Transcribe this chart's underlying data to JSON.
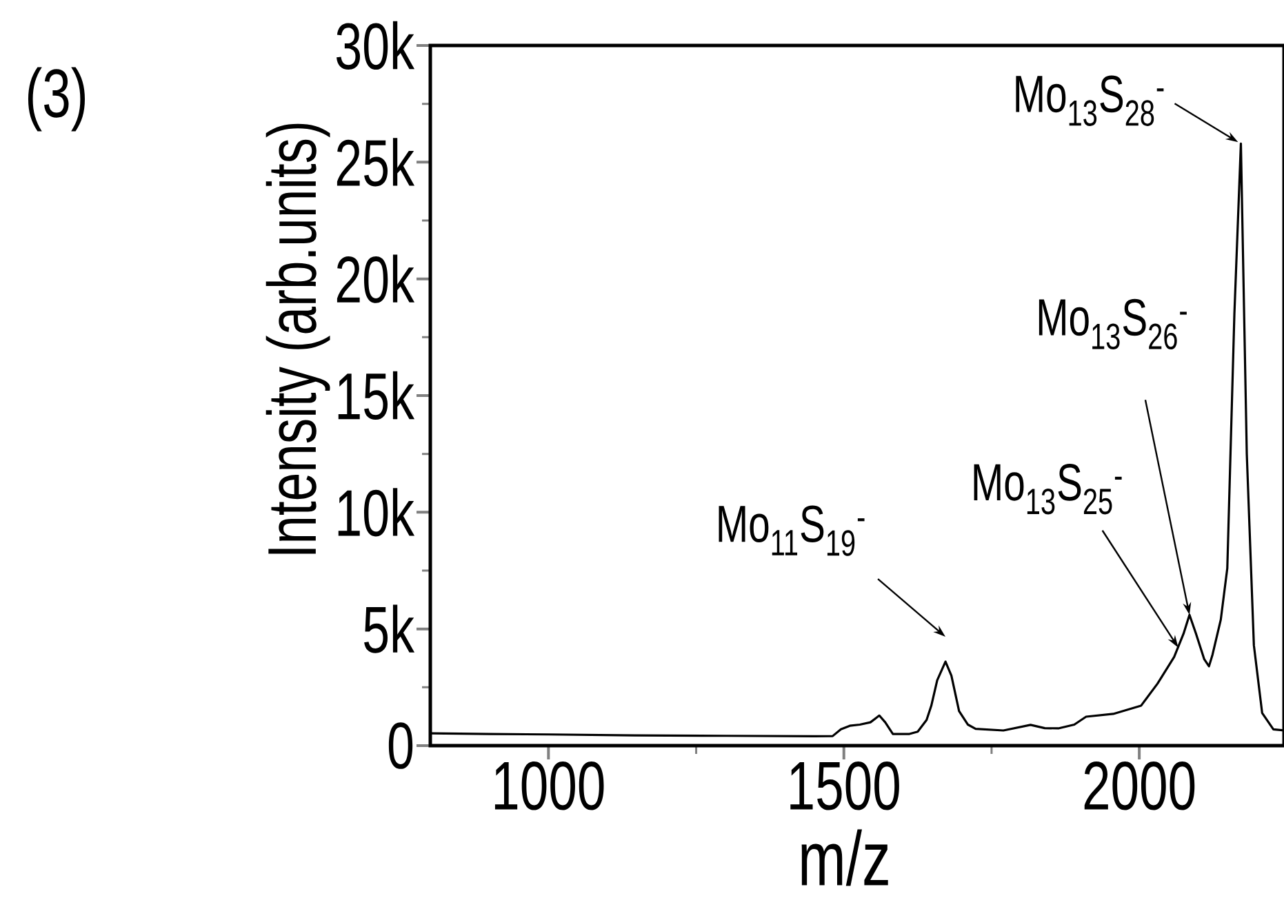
{
  "chart_data": {
    "type": "line",
    "title": "(3)",
    "xlabel": "m/z",
    "ylabel": "Intensity (arb.units)",
    "x": [
      800,
      900,
      1000,
      1145,
      1300,
      1450,
      1481,
      1495,
      1510,
      1527,
      1545,
      1560,
      1570,
      1583,
      1611,
      1625,
      1640,
      1648,
      1658,
      1672,
      1682,
      1695,
      1710,
      1723,
      1770,
      1816,
      1840,
      1863,
      1890,
      1910,
      1956,
      2003,
      2031,
      2059,
      2075,
      2085,
      2096,
      2110,
      2118,
      2124,
      2138,
      2149,
      2161,
      2172,
      2182,
      2194,
      2208,
      2227,
      2245
    ],
    "values": [
      530,
      500,
      480,
      440,
      420,
      400,
      410,
      700,
      850,
      900,
      1000,
      1290,
      1000,
      500,
      500,
      600,
      1100,
      1710,
      2800,
      3600,
      3000,
      1480,
      900,
      720,
      650,
      890,
      750,
      740,
      900,
      1240,
      1360,
      1710,
      2660,
      3800,
      4800,
      5600,
      4800,
      3700,
      3400,
      3900,
      5400,
      7600,
      18500,
      25800,
      12500,
      4300,
      1400,
      700,
      650
    ],
    "color": "#000000",
    "marker": "none",
    "xlim": [
      800,
      2245
    ],
    "ylim": [
      0,
      30000
    ],
    "xticks": [
      1000,
      1500,
      2000
    ],
    "yticks": [
      0,
      {
        "value": 5000,
        "label": "5k"
      },
      {
        "value": 10000,
        "label": "10k"
      },
      {
        "value": 15000,
        "label": "15k"
      },
      {
        "value": 20000,
        "label": "20k"
      },
      {
        "value": 25000,
        "label": "25k"
      },
      {
        "value": 30000,
        "label": "30k"
      }
    ],
    "annotations": [
      {
        "text": "Mo$_{11}$S$_{19}$$^{-}$",
        "x": 1672,
        "y": 3600
      },
      {
        "text": "Mo$_{13}$S$_{25}$$^{-}$",
        "x": 2066,
        "y": 4200
      },
      {
        "text": "Mo$_{13}$S$_{26}$$^{-}$",
        "x": 2085,
        "y": 5600
      },
      {
        "text": "Mo$_{13}$S$_{28}$$^{-}$",
        "x": 2172,
        "y": 25800
      }
    ]
  }
}
